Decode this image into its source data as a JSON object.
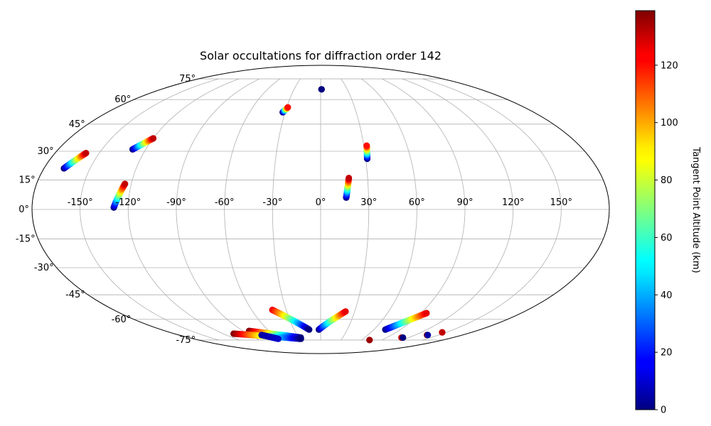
{
  "chart_data": {
    "type": "scatter",
    "projection": "mollweide",
    "title": "Solar occultations for diffraction order 142",
    "grid": true,
    "longitude_ticks": [
      "-150°",
      "-120°",
      "-90°",
      "-60°",
      "-30°",
      "0°",
      "30°",
      "60°",
      "90°",
      "120°",
      "150°"
    ],
    "latitude_ticks": [
      "75°",
      "60°",
      "45°",
      "30°",
      "15°",
      "0°",
      "-15°",
      "-30°",
      "-45°",
      "-60°",
      "-75°"
    ],
    "colorbar": {
      "label": "Tangent Point Altitude (km)",
      "colormap": "jet",
      "range": [
        0,
        139
      ],
      "ticks": [
        "0",
        "20",
        "40",
        "60",
        "80",
        "100",
        "120"
      ]
    },
    "tracks": [
      {
        "lon": [
          -167,
          -159
        ],
        "lat": [
          21,
          29
        ],
        "alt": [
          0,
          130
        ]
      },
      {
        "lon": [
          -129,
          -120
        ],
        "lat": [
          31,
          37
        ],
        "alt": [
          0,
          130
        ]
      },
      {
        "lon": [
          -129,
          -124
        ],
        "lat": [
          1,
          13
        ],
        "alt": [
          0,
          130
        ]
      },
      {
        "lon": [
          -32,
          -29
        ],
        "lat": [
          52,
          55
        ],
        "alt": [
          0,
          120
        ]
      },
      {
        "lon": [
          1,
          1
        ],
        "lat": [
          67,
          67
        ],
        "alt": [
          0,
          0
        ]
      },
      {
        "lon": [
          16,
          18
        ],
        "lat": [
          6,
          16
        ],
        "alt": [
          0,
          130
        ]
      },
      {
        "lon": [
          31,
          32
        ],
        "lat": [
          26,
          33
        ],
        "alt": [
          0,
          120
        ]
      },
      {
        "lon": [
          -83,
          -27
        ],
        "lat": [
          -68,
          -73
        ],
        "alt": [
          139,
          0
        ]
      },
      {
        "lon": [
          -107,
          -28
        ],
        "lat": [
          -70,
          -74
        ],
        "alt": [
          139,
          0
        ]
      },
      {
        "lon": [
          -75,
          -60
        ],
        "lat": [
          -71,
          -74
        ],
        "alt": [
          5,
          10
        ]
      },
      {
        "lon": [
          -42,
          -13
        ],
        "lat": [
          -54,
          -67
        ],
        "alt": [
          125,
          0
        ]
      },
      {
        "lon": [
          -2,
          22
        ],
        "lat": [
          -67,
          -55
        ],
        "alt": [
          0,
          125
        ]
      },
      {
        "lon": [
          73,
          95
        ],
        "lat": [
          -67,
          -56
        ],
        "alt": [
          0,
          125
        ]
      },
      {
        "lon": [
          72,
          72
        ],
        "lat": [
          -75,
          -75
        ],
        "alt": [
          135,
          135
        ]
      },
      {
        "lon": [
          110,
          112
        ],
        "lat": [
          -73,
          -73
        ],
        "alt": [
          130,
          0
        ]
      },
      {
        "lon": [
          135,
          136
        ],
        "lat": [
          -71,
          -71
        ],
        "alt": [
          135,
          5
        ]
      },
      {
        "lon": [
          145,
          145
        ],
        "lat": [
          -69,
          -69
        ],
        "alt": [
          130,
          130
        ]
      }
    ]
  }
}
